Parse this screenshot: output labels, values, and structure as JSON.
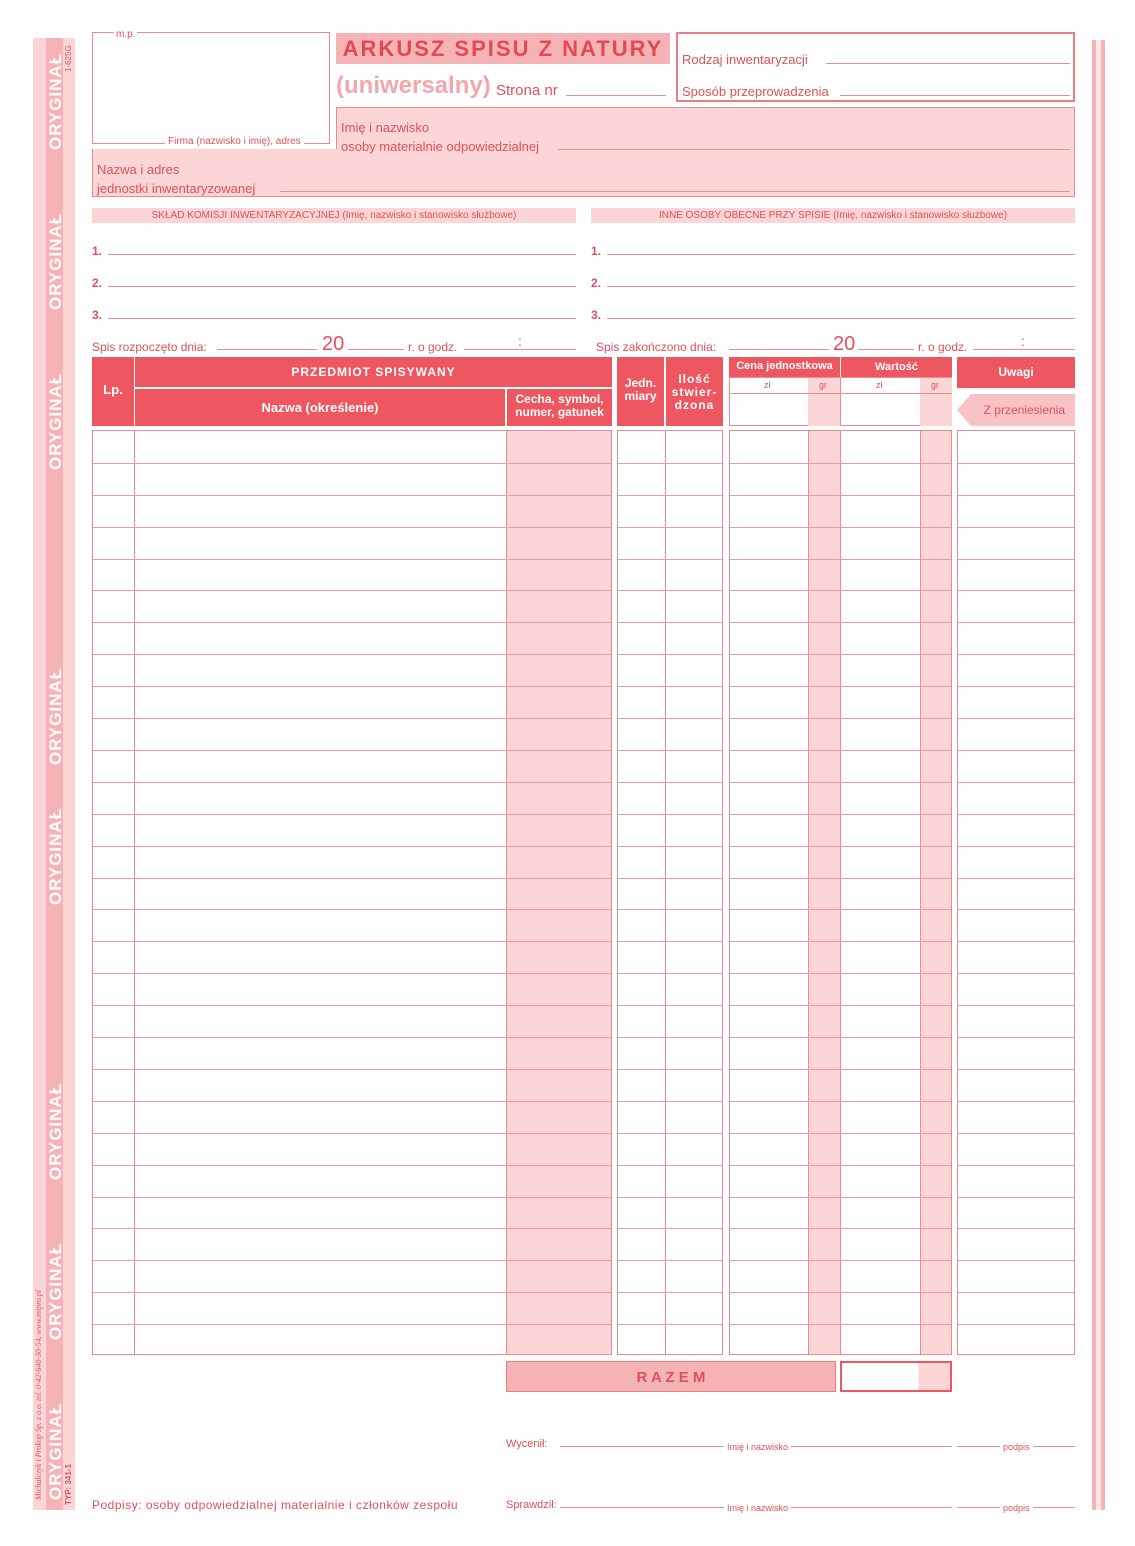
{
  "side": {
    "watermark": "ORYGINAŁ",
    "code": "1-625G",
    "type": "TYP: 341-1",
    "publisher": "Michalczyk i Prokop Sp. z o.o. tel. 0-42-640-30-54, www.mipro.pl"
  },
  "header": {
    "mp": "m.p.",
    "firma": "Firma (nazwisko i imię), adres",
    "title": "ARKUSZ SPISU Z NATURY",
    "subtitle": "(uniwersalny)",
    "page_no": "Strona nr",
    "rodzaj": "Rodzaj inwentaryzacji",
    "sposob": "Sposób przeprowadzenia",
    "osoba1": "Imię i nazwisko",
    "osoba2": "osoby materialnie odpowiedzialnej",
    "jedn1": "Nazwa i adres",
    "jedn2": "jednostki inwentaryzowanej"
  },
  "komisja": {
    "title": "SKŁAD KOMISJI INWENTARYZACYJNEJ (Imię, nazwisko i stanowisko służbowe)",
    "inne": "INNE OSOBY OBECNE PRZY SPISIE (Imię, nazwisko i stanowisko służbowe)",
    "n1": "1.",
    "n2": "2.",
    "n3": "3."
  },
  "dates": {
    "start": "Spis rozpoczęto dnia:",
    "end": "Spis zakończono dnia:",
    "year": "20",
    "hour": "r. o godz.",
    "colon": ":"
  },
  "table": {
    "lp": "Lp.",
    "przedmiot": "PRZEDMIOT SPISYWANY",
    "nazwa": "Nazwa (określenie)",
    "cecha": "Cecha, symbol, numer, gatunek",
    "jedn": "Jedn. miary",
    "ilosc": "Ilość stwier- dzona",
    "cena": "Cena jednostkowa",
    "wartosc": "Wartość",
    "zl": "zł",
    "gr": "gr",
    "uwagi": "Uwagi",
    "przeniesienie": "Z przeniesienia",
    "rows": 29
  },
  "footer": {
    "razem": "R A Z E M",
    "wycenil": "Wycenił:",
    "sprawdzil": "Sprawdził:",
    "imie": "Imię i nazwisko",
    "podpis": "podpis",
    "podpisy": "Podpisy: osoby odpowiedzialnej materialnie i członków zespołu"
  },
  "colors": {
    "red": "#ee5660",
    "pink": "#fcd6d6",
    "line": "#ea8e93"
  }
}
